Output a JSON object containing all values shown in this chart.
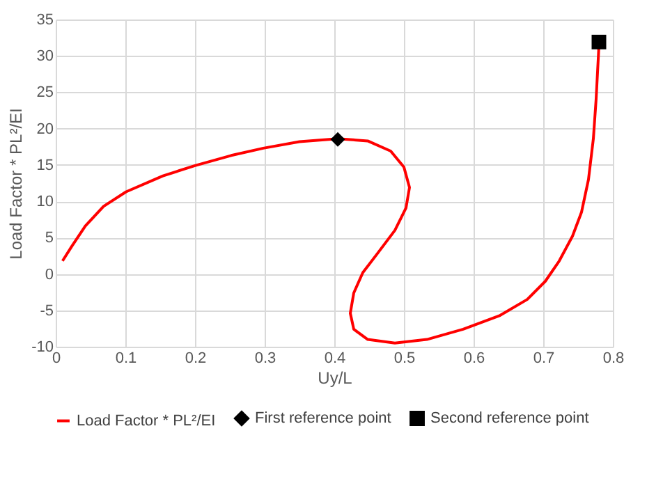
{
  "chart_data": {
    "type": "line",
    "xlabel": "Uy/L",
    "ylabel": "Load Factor * PL²/EI",
    "xlim": [
      0,
      0.8
    ],
    "ylim": [
      -10,
      35
    ],
    "xticks": [
      0,
      0.1,
      0.2,
      0.3,
      0.4,
      0.5,
      0.6,
      0.7,
      0.8
    ],
    "yticks": [
      -10,
      -5,
      0,
      5,
      10,
      15,
      20,
      25,
      30,
      35
    ],
    "grid": true,
    "legend": "bottom",
    "series": [
      {
        "name": "Load Factor * PL²/EI",
        "color": "#ff0000",
        "type": "line",
        "marker": "none",
        "x": [
          0.0098,
          0.023,
          0.0425,
          0.0687,
          0.101,
          0.154,
          0.2,
          0.252,
          0.298,
          0.35,
          0.405,
          0.448,
          0.481,
          0.5,
          0.508,
          0.503,
          0.487,
          0.461,
          0.441,
          0.428,
          0.423,
          0.428,
          0.448,
          0.487,
          0.533,
          0.585,
          0.638,
          0.677,
          0.703,
          0.723,
          0.742,
          0.755,
          0.765,
          0.772,
          0.776,
          0.78
        ],
        "values": [
          1.8,
          3.8,
          6.6,
          9.3,
          11.3,
          13.5,
          14.9,
          16.3,
          17.3,
          18.2,
          18.6,
          18.3,
          16.9,
          14.7,
          11.9,
          9.1,
          6.0,
          2.7,
          0.2,
          -2.6,
          -5.4,
          -7.6,
          -9.0,
          -9.5,
          -9.0,
          -7.6,
          -5.7,
          -3.5,
          -1.0,
          1.8,
          5.2,
          8.5,
          13.0,
          18.6,
          24.1,
          31.4
        ]
      },
      {
        "name": "First reference point",
        "color": "#000000",
        "type": "scatter",
        "marker": "diamond",
        "x": [
          0.405
        ],
        "values": [
          18.5
        ]
      },
      {
        "name": "Second reference point",
        "color": "#000000",
        "type": "scatter",
        "marker": "square",
        "x": [
          0.78
        ],
        "values": [
          31.9
        ]
      }
    ]
  }
}
